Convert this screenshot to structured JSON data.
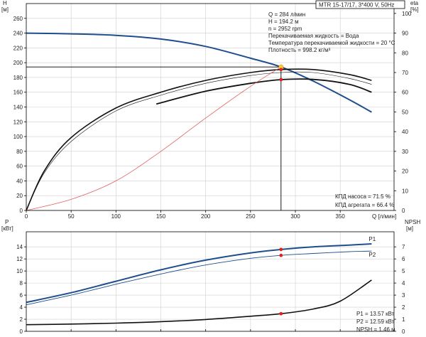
{
  "colors": {
    "curve_blue": "#1f4e8c",
    "curve_black": "#111111",
    "npsh_red": "#e06060",
    "duty_point": "#ffcc33",
    "point_red": "#e02020",
    "axis": "#000000"
  },
  "header": {
    "model": "MTR 15-17/17, 3*400 V, 50Hz"
  },
  "info": {
    "q": "Q = 284 л/мин",
    "h": "H = 194.2 м",
    "n": "n = 2952 rpm",
    "liquid": "Перекачиваемая жидкость = Вода",
    "temp": "Температура перекачиваемой жидкости = 20 °C",
    "density": "Плотность = 998.2 кг/м³",
    "eta_pump": "КПД насоса = 71.5 %",
    "eta_unit": "КПД агрегата = 66.4 %",
    "p1": "P1 = 13.57 кВт",
    "p2": "P2 = 12.59 кВт",
    "npsh": "NPSH = 1.46 м"
  },
  "chart_data": [
    {
      "type": "line",
      "panel": "top",
      "left_axis": {
        "label": "H",
        "unit": "[м]",
        "ylim": [
          0,
          280
        ],
        "ticks": [
          0,
          20,
          40,
          60,
          80,
          100,
          120,
          140,
          160,
          180,
          200,
          220,
          240,
          260
        ]
      },
      "right_axis": {
        "label": "eta",
        "unit": "[%]",
        "ylim": [
          0,
          105
        ],
        "ticks": [
          0,
          10,
          20,
          30,
          40,
          50,
          60,
          70,
          80,
          90,
          100
        ]
      },
      "x_axis": {
        "label": "Q [л/мин]",
        "xlim": [
          0,
          410
        ],
        "ticks": [
          0,
          50,
          100,
          150,
          200,
          250,
          300,
          350
        ]
      },
      "grid": true,
      "series": [
        {
          "kind": "H",
          "axis": "left",
          "color": "#1f4e8c",
          "x": [
            0,
            50,
            100,
            150,
            200,
            250,
            284,
            320,
            360,
            385
          ],
          "y": [
            240,
            239,
            237,
            232,
            222,
            206,
            194.2,
            175,
            150,
            133
          ]
        },
        {
          "kind": "eta_pump",
          "axis": "right",
          "color": "#111111",
          "x": [
            0,
            20,
            50,
            100,
            150,
            200,
            250,
            284,
            320,
            360,
            385
          ],
          "y": [
            0,
            20,
            37,
            52,
            60,
            66,
            70,
            71.5,
            71.5,
            69,
            66
          ]
        },
        {
          "kind": "eta_pump_thin",
          "axis": "right",
          "color": "#111111",
          "x": [
            0,
            20,
            50,
            100,
            150,
            200,
            250,
            284,
            320,
            360,
            385
          ],
          "y": [
            0,
            19,
            35,
            50.5,
            58.5,
            64.5,
            68.5,
            70,
            70,
            67,
            64
          ]
        },
        {
          "kind": "eta_unit",
          "axis": "right",
          "color": "#111111",
          "x": [
            145,
            200,
            250,
            284,
            320,
            360,
            385
          ],
          "y": [
            54,
            60.5,
            64.5,
            66.4,
            66.5,
            64,
            60
          ]
        },
        {
          "kind": "system",
          "axis": "left",
          "color": "#e06060",
          "x": [
            0,
            50,
            100,
            150,
            200,
            250,
            284
          ],
          "y": [
            0,
            15,
            40,
            80,
            125,
            168,
            194.2
          ]
        }
      ],
      "duty_point": {
        "q": 284,
        "h": 194.2,
        "eta_pump": 71.5,
        "eta_unit": 66.4
      }
    },
    {
      "type": "line",
      "panel": "bottom",
      "left_axis": {
        "label": "P",
        "unit": "[кВт]",
        "ylim": [
          0,
          16.5
        ],
        "ticks": [
          0,
          2,
          4,
          6,
          8,
          10,
          12,
          14
        ]
      },
      "right_axis": {
        "label": "NPSH",
        "unit": "[м]",
        "ylim": [
          0,
          8.25
        ],
        "ticks": [
          0,
          1,
          2,
          3,
          4,
          5,
          6,
          7
        ]
      },
      "x_axis": {
        "xlim": [
          0,
          410
        ]
      },
      "grid": true,
      "series": [
        {
          "name": "P1",
          "axis": "left",
          "color": "#1f4e8c",
          "x": [
            0,
            50,
            100,
            150,
            200,
            250,
            284,
            320,
            360,
            385
          ],
          "y": [
            4.8,
            6.4,
            8.3,
            10.2,
            11.8,
            13.0,
            13.57,
            14.0,
            14.3,
            14.5
          ]
        },
        {
          "name": "P2",
          "axis": "left",
          "color": "#1f4e8c",
          "x": [
            0,
            50,
            100,
            150,
            200,
            250,
            284,
            320,
            360,
            385
          ],
          "y": [
            4.4,
            6.0,
            7.8,
            9.5,
            11.0,
            12.1,
            12.59,
            12.9,
            13.2,
            13.3
          ]
        },
        {
          "name": "NPSH",
          "axis": "right",
          "color": "#111111",
          "x": [
            0,
            50,
            100,
            150,
            200,
            250,
            284,
            320,
            350,
            385
          ],
          "y": [
            0.55,
            0.6,
            0.68,
            0.8,
            0.98,
            1.25,
            1.46,
            1.85,
            2.5,
            4.25
          ]
        }
      ],
      "duty_point": {
        "q": 284,
        "p1": 13.57,
        "p2": 12.59,
        "npsh": 1.46
      }
    }
  ]
}
